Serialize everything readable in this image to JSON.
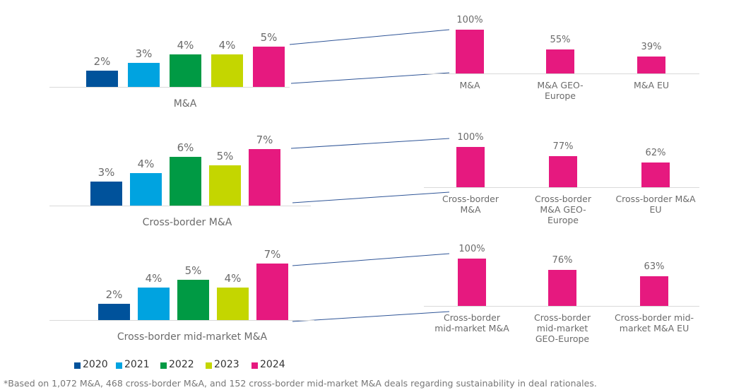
{
  "chart_data": [
    {
      "type": "bar",
      "categories": [
        "M&A",
        "Cross-border M&A",
        "Cross-border mid-market M&A"
      ],
      "series": [
        {
          "name": "2020",
          "color": "#00529b",
          "values": [
            2,
            3,
            2
          ],
          "value_labels": [
            "2%",
            "3%",
            "2%"
          ]
        },
        {
          "name": "2021",
          "color": "#00a3e0",
          "values": [
            3,
            4,
            4
          ],
          "value_labels": [
            "3%",
            "4%",
            "4%"
          ]
        },
        {
          "name": "2022",
          "color": "#009a44",
          "values": [
            4,
            6,
            5
          ],
          "value_labels": [
            "4%",
            "6%",
            "5%"
          ]
        },
        {
          "name": "2023",
          "color": "#c4d600",
          "values": [
            4,
            5,
            4
          ],
          "value_labels": [
            "4%",
            "5%",
            "4%"
          ]
        },
        {
          "name": "2024",
          "color": "#e6197f",
          "values": [
            5,
            7,
            7
          ],
          "value_labels": [
            "5%",
            "7%",
            "7%"
          ]
        }
      ],
      "ylim": [
        0,
        8
      ],
      "legend": "bottom-left"
    },
    {
      "type": "bar",
      "color": "#e6197f",
      "categories": [
        "M&A",
        "M&A GEO-Europe",
        "M&A EU"
      ],
      "values": [
        100,
        55,
        39
      ],
      "value_labels": [
        "100%",
        "55%",
        "39%"
      ],
      "ylim": [
        0,
        100
      ]
    },
    {
      "type": "bar",
      "color": "#e6197f",
      "categories": [
        "Cross-border M&A",
        "Cross-border M&A GEO-Europe",
        "Cross-border M&A EU"
      ],
      "values": [
        100,
        77,
        62
      ],
      "value_labels": [
        "100%",
        "77%",
        "62%"
      ],
      "ylim": [
        0,
        100
      ]
    },
    {
      "type": "bar",
      "color": "#e6197f",
      "categories": [
        "Cross-border mid-market M&A",
        "Cross-border mid-market GEO-Europe",
        "Cross-border mid-market M&A EU"
      ],
      "values": [
        100,
        76,
        63
      ],
      "value_labels": [
        "100%",
        "76%",
        "63%"
      ],
      "ylim": [
        0,
        100
      ]
    }
  ],
  "footnote": "*Based on 1,072 M&A, 468 cross-border M&A, and 152 cross-border mid-market M&A deals regarding sustainability in deal rationales."
}
